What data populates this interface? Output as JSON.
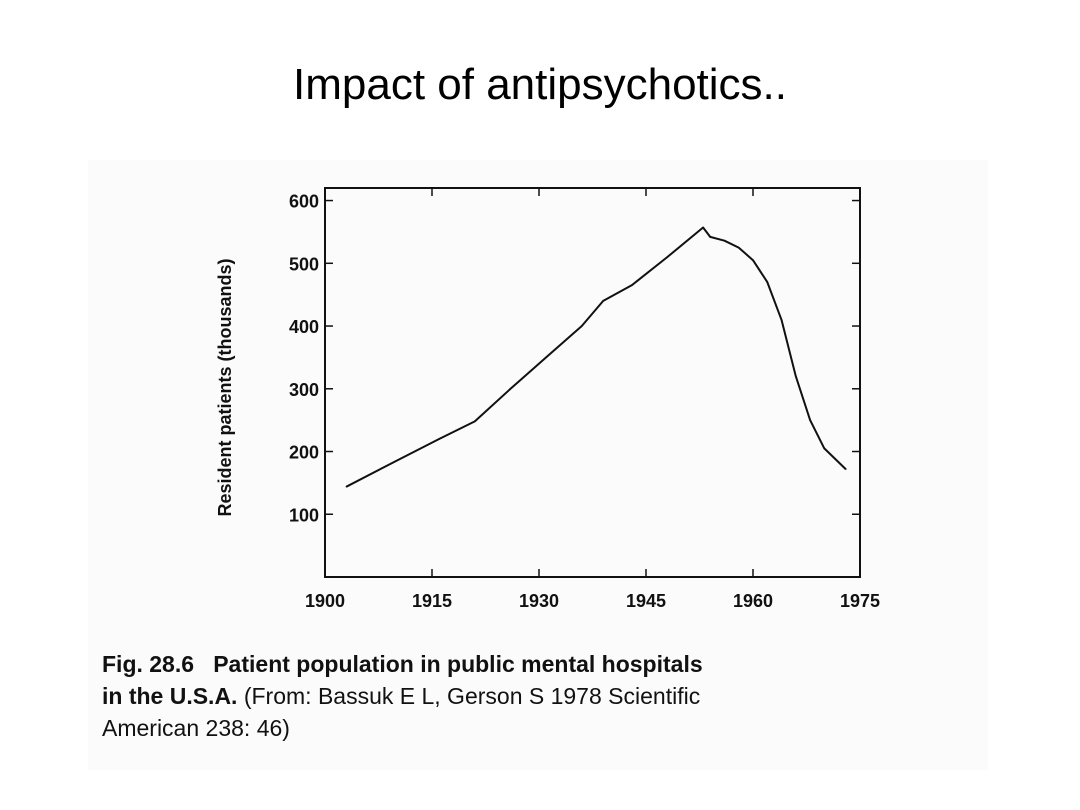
{
  "slide": {
    "title": "Impact of antipsychotics.."
  },
  "caption": {
    "fig_label": "Fig. 28.6",
    "bold_title_part1": "Patient population in public mental hospitals",
    "bold_title_part2": "in the U.S.A.",
    "source_line1": "(From: Bassuk E L, Gerson S 1978 Scientific",
    "source_line2": "American 238: 46)"
  },
  "chart_data": {
    "type": "line",
    "title": "",
    "xlabel": "",
    "ylabel": "Resident patients (thousands)",
    "xlim": [
      1900,
      1975
    ],
    "ylim": [
      0,
      620
    ],
    "x_ticks": [
      1900,
      1915,
      1930,
      1945,
      1960,
      1975
    ],
    "y_ticks": [
      100,
      200,
      300,
      400,
      500,
      600
    ],
    "grid": false,
    "series": [
      {
        "x": [
          1903,
          1910,
          1916,
          1921,
          1926,
          1931,
          1936,
          1939,
          1943,
          1948,
          1953,
          1954,
          1956,
          1958,
          1960,
          1962,
          1964,
          1966,
          1968,
          1970,
          1973
        ],
        "values": [
          144,
          185,
          220,
          248,
          300,
          350,
          400,
          440,
          465,
          510,
          557,
          542,
          536,
          525,
          505,
          470,
          410,
          320,
          250,
          205,
          172
        ]
      }
    ]
  }
}
